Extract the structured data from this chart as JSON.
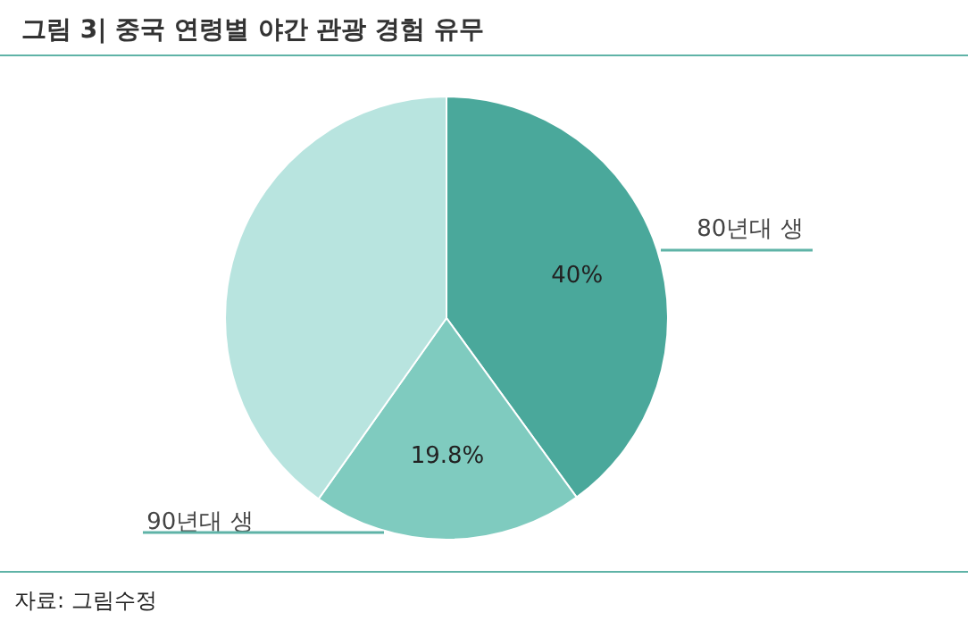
{
  "chart_data": {
    "type": "pie",
    "title": "그림 3| 중국 연령별 야간 관광 경험 유무",
    "categories": [
      "80년대 생",
      "90년대 생",
      null
    ],
    "values": [
      40,
      19.8,
      40.2
    ],
    "colors": [
      "#4aa89b",
      "#7fcbbf",
      "#b8e4df"
    ],
    "value_labels": [
      "40%",
      "19.8%",
      null
    ],
    "annotations": [
      "자료: 그림수정"
    ]
  }
}
